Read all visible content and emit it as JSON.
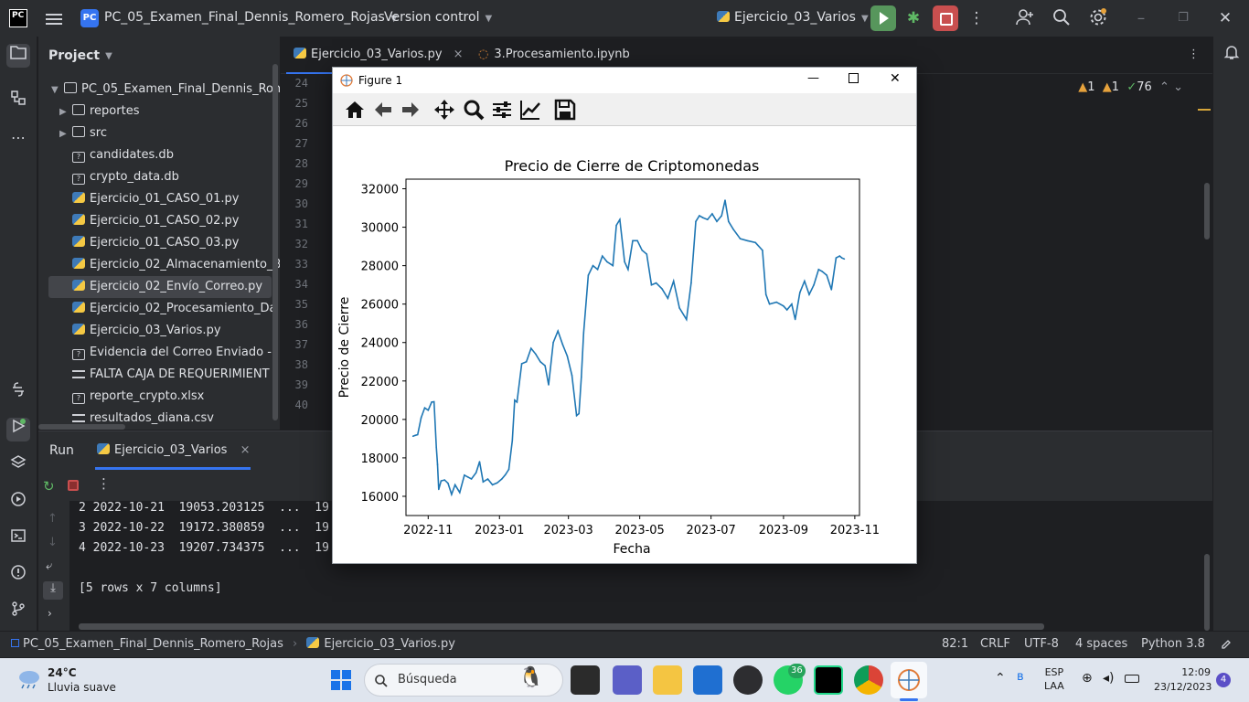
{
  "titlebar": {
    "logo": "PC",
    "project_badge": "PC",
    "project_name": "PC_05_Examen_Final_Dennis_Romero_Rojas",
    "vcs": "Version control",
    "run_config": "Ejercicio_03_Varios"
  },
  "project_panel": {
    "title": "Project",
    "root": "PC_05_Examen_Final_Dennis_Romero_Rojas",
    "items": [
      {
        "label": "reportes",
        "kind": "folder"
      },
      {
        "label": "src",
        "kind": "folder"
      },
      {
        "label": "candidates.db",
        "kind": "unknown"
      },
      {
        "label": "crypto_data.db",
        "kind": "unknown"
      },
      {
        "label": "Ejercicio_01_CASO_01.py",
        "kind": "python"
      },
      {
        "label": "Ejercicio_01_CASO_02.py",
        "kind": "python"
      },
      {
        "label": "Ejercicio_01_CASO_03.py",
        "kind": "python"
      },
      {
        "label": "Ejercicio_02_Almacenamiento_B",
        "kind": "python"
      },
      {
        "label": "Ejercicio_02_Envío_Correo.py",
        "kind": "python"
      },
      {
        "label": "Ejercicio_02_Procesamiento_Da",
        "kind": "python"
      },
      {
        "label": "Ejercicio_03_Varios.py",
        "kind": "python"
      },
      {
        "label": "Evidencia del Correo Enviado -",
        "kind": "unknown"
      },
      {
        "label": "FALTA CAJA DE REQUERIMIENT",
        "kind": "text"
      },
      {
        "label": "reporte_crypto.xlsx",
        "kind": "unknown"
      },
      {
        "label": "resultados_diana.csv",
        "kind": "text"
      }
    ]
  },
  "editor": {
    "tabs": [
      {
        "label": "Ejercicio_03_Varios.py",
        "close": "×"
      },
      {
        "label": "3.Procesamiento.ipynb"
      }
    ],
    "line_numbers": [
      "24",
      "25",
      "26",
      "27",
      "28",
      "29",
      "30",
      "31",
      "32",
      "33",
      "34",
      "35",
      "36",
      "37",
      "38",
      "39",
      "40"
    ],
    "inspections": {
      "warnings_a": "1",
      "warnings_b": "1",
      "ok": "76"
    }
  },
  "figure": {
    "title": "Figure 1",
    "minimize": "—",
    "close": "✕"
  },
  "run_panel": {
    "tab_run": "Run",
    "tab_config": "Ejercicio_03_Varios",
    "tab_close": "×",
    "console_lines": [
      "2 2022-10-21  19053.203125  ...  19",
      "3 2022-10-22  19172.380859  ...  19",
      "4 2022-10-23  19207.734375  ...  19",
      "",
      "[5 rows x 7 columns]"
    ]
  },
  "statusbar": {
    "project": "PC_05_Examen_Final_Dennis_Romero_Rojas",
    "file": "Ejercicio_03_Varios.py",
    "position": "82:1",
    "line_sep": "CRLF",
    "encoding": "UTF-8",
    "indent": "4 spaces",
    "interpreter": "Python 3.8"
  },
  "taskbar": {
    "weather_temp": "24°C",
    "weather_desc": "Lluvia suave",
    "search_placeholder": "Búsqueda",
    "whatsapp_badge": "36",
    "lang_1": "ESP",
    "lang_2": "LAA",
    "time": "12:09",
    "date": "23/12/2023",
    "notifications": "4"
  },
  "chart_data": {
    "type": "line",
    "title": "Precio de Cierre de Criptomonedas",
    "xlabel": "Fecha",
    "ylabel": "Precio de Cierre",
    "xlim": [
      "2022-10-13",
      "2023-11-05"
    ],
    "ylim": [
      15000,
      32500
    ],
    "x_ticks": [
      "2022-11",
      "2023-01",
      "2023-03",
      "2023-05",
      "2023-07",
      "2023-09",
      "2023-11"
    ],
    "y_ticks": [
      16000,
      18000,
      20000,
      22000,
      24000,
      26000,
      28000,
      30000,
      32000
    ],
    "color": "#1f77b4",
    "grid": false,
    "series": [
      {
        "x": [
          "2022-10-19",
          "2022-10-21",
          "2022-10-23",
          "2022-10-26",
          "2022-10-29",
          "2022-11-01",
          "2022-11-04",
          "2022-11-06",
          "2022-11-08",
          "2022-11-09",
          "2022-11-10",
          "2022-11-12",
          "2022-11-15",
          "2022-11-18",
          "2022-11-21",
          "2022-11-24",
          "2022-11-28",
          "2022-12-02",
          "2022-12-05",
          "2022-12-08",
          "2022-12-12",
          "2022-12-15",
          "2022-12-18",
          "2022-12-22",
          "2022-12-26",
          "2022-12-30",
          "2023-01-03",
          "2023-01-06",
          "2023-01-09",
          "2023-01-12",
          "2023-01-14",
          "2023-01-16",
          "2023-01-20",
          "2023-01-24",
          "2023-01-28",
          "2023-02-01",
          "2023-02-05",
          "2023-02-09",
          "2023-02-12",
          "2023-02-16",
          "2023-02-20",
          "2023-02-24",
          "2023-02-28",
          "2023-03-04",
          "2023-03-08",
          "2023-03-10",
          "2023-03-12",
          "2023-03-14",
          "2023-03-18",
          "2023-03-22",
          "2023-03-26",
          "2023-03-30",
          "2023-04-03",
          "2023-04-08",
          "2023-04-11",
          "2023-04-14",
          "2023-04-18",
          "2023-04-21",
          "2023-04-25",
          "2023-04-29",
          "2023-05-03",
          "2023-05-07",
          "2023-05-11",
          "2023-05-15",
          "2023-05-20",
          "2023-05-25",
          "2023-05-30",
          "2023-06-04",
          "2023-06-10",
          "2023-06-14",
          "2023-06-18",
          "2023-06-21",
          "2023-06-24",
          "2023-06-28",
          "2023-07-02",
          "2023-07-06",
          "2023-07-10",
          "2023-07-13",
          "2023-07-16",
          "2023-07-20",
          "2023-07-26",
          "2023-08-01",
          "2023-08-08",
          "2023-08-14",
          "2023-08-17",
          "2023-08-20",
          "2023-08-26",
          "2023-09-01",
          "2023-09-04",
          "2023-09-08",
          "2023-09-11",
          "2023-09-15",
          "2023-09-19",
          "2023-09-23",
          "2023-09-27",
          "2023-10-01",
          "2023-10-04",
          "2023-10-08",
          "2023-10-12",
          "2023-10-16",
          "2023-10-19",
          "2023-10-21",
          "2023-10-23"
        ],
        "y": [
          19130,
          19172,
          19207,
          20090,
          20600,
          20480,
          20900,
          20920,
          18550,
          17660,
          16360,
          16800,
          16850,
          16680,
          16100,
          16600,
          16200,
          17100,
          17000,
          16900,
          17230,
          17800,
          16750,
          16900,
          16600,
          16700,
          16900,
          17120,
          17400,
          18900,
          21000,
          20900,
          22900,
          23000,
          23700,
          23400,
          23000,
          22800,
          21800,
          24000,
          24600,
          23900,
          23300,
          22300,
          20200,
          20300,
          22200,
          24500,
          27500,
          28000,
          27800,
          28500,
          28200,
          28000,
          30100,
          30400,
          28200,
          27800,
          29300,
          29300,
          28800,
          28600,
          27000,
          27100,
          26800,
          26300,
          27200,
          25800,
          25200,
          27100,
          30300,
          30600,
          30500,
          30400,
          30700,
          30300,
          30600,
          31400,
          30300,
          29900,
          29400,
          29300,
          29200,
          28800,
          26500,
          26000,
          26100,
          25900,
          25700,
          26000,
          25200,
          26600,
          27200,
          26500,
          27000,
          27800,
          27700,
          27500,
          26750,
          28400,
          28500,
          28400,
          28350
        ]
      }
    ]
  }
}
